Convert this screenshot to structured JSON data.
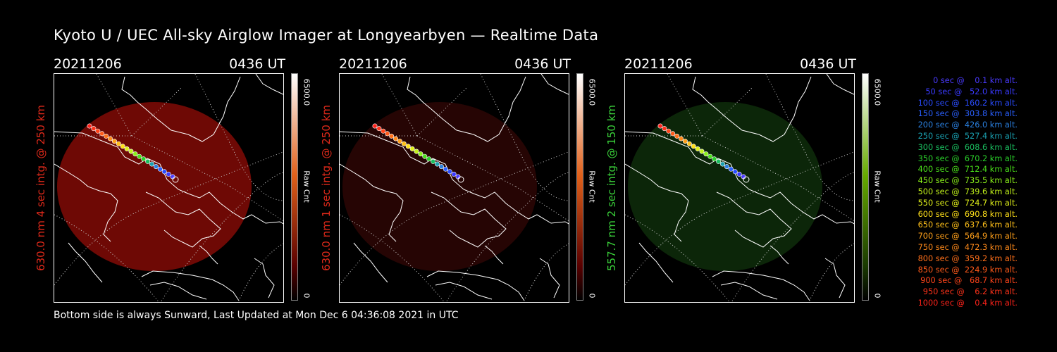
{
  "title": "Kyoto U / UEC All-sky Airglow Imager at Longyearbyen — Realtime Data",
  "panels": [
    {
      "date": "20211206",
      "time": "0436 UT",
      "ylabel": "630.0 nm 4 sec intg. @ 250 km",
      "label_color": "#e0291a",
      "cbar_max": "6500.0",
      "cbar_min": "0",
      "cbar_unit": "Raw Cnt",
      "glow_color": "#7a0a06",
      "glow_opacity": 0.9,
      "cbar_top": "#ffffff",
      "cbar_mid": "#e0601a",
      "cbar_low": "#5a0000"
    },
    {
      "date": "20211206",
      "time": "0436 UT",
      "ylabel": "630.0 nm 1 sec intg. @ 250 km",
      "label_color": "#e0291a",
      "cbar_max": "6500.0",
      "cbar_min": "0",
      "cbar_unit": "Raw Cnt",
      "glow_color": "#2a0504",
      "glow_opacity": 0.9,
      "cbar_top": "#ffffff",
      "cbar_mid": "#e0601a",
      "cbar_low": "#5a0000"
    },
    {
      "date": "20211206",
      "time": "0436 UT",
      "ylabel": "557.7 nm 2 sec intg. @ 150 km",
      "label_color": "#3ad13a",
      "cbar_max": "6500.0",
      "cbar_min": "0",
      "cbar_unit": "Raw Cnt",
      "glow_color": "#0d2a0a",
      "glow_opacity": 0.9,
      "cbar_top": "#ffffff",
      "cbar_mid": "#66aa00",
      "cbar_low": "#1a3a00"
    }
  ],
  "legend": [
    {
      "text": "0 sec @    0.1 km alt.",
      "color": "#4a3aff"
    },
    {
      "text": "50 sec @   52.0 km alt.",
      "color": "#3a3aff"
    },
    {
      "text": "100 sec @  160.2 km alt.",
      "color": "#2a4cff"
    },
    {
      "text": "150 sec @  303.8 km alt.",
      "color": "#2a60ff"
    },
    {
      "text": "200 sec @  426.0 km alt.",
      "color": "#2a80e0"
    },
    {
      "text": "250 sec @  527.4 km alt.",
      "color": "#1aa0b0"
    },
    {
      "text": "300 sec @  608.6 km alt.",
      "color": "#1ac060"
    },
    {
      "text": "350 sec @  670.2 km alt.",
      "color": "#2ad02a"
    },
    {
      "text": "400 sec @  712.4 km alt.",
      "color": "#4ae01a"
    },
    {
      "text": "450 sec @  735.5 km alt.",
      "color": "#8af01a"
    },
    {
      "text": "500 sec @  739.6 km alt.",
      "color": "#c0f01a"
    },
    {
      "text": "550 sec @  724.7 km alt.",
      "color": "#e0f01a"
    },
    {
      "text": "600 sec @  690.8 km alt.",
      "color": "#ffe01a"
    },
    {
      "text": "650 sec @  637.6 km alt.",
      "color": "#ffc01a"
    },
    {
      "text": "700 sec @  564.9 km alt.",
      "color": "#ffa01a"
    },
    {
      "text": "750 sec @  472.3 km alt.",
      "color": "#ff8a1a"
    },
    {
      "text": "800 sec @  359.2 km alt.",
      "color": "#ff701a"
    },
    {
      "text": "850 sec @  224.9 km alt.",
      "color": "#ff5a1a"
    },
    {
      "text": "900 sec @   68.7 km alt.",
      "color": "#ff441a"
    },
    {
      "text": "950 sec @    6.2 km alt.",
      "color": "#ff321a"
    },
    {
      "text": "1000 sec @    0.4 km alt.",
      "color": "#ff221a"
    }
  ],
  "footer": "Bottom side is always Sunward, Last Updated at Mon Dec  6 04:36:08 2021 in UTC"
}
